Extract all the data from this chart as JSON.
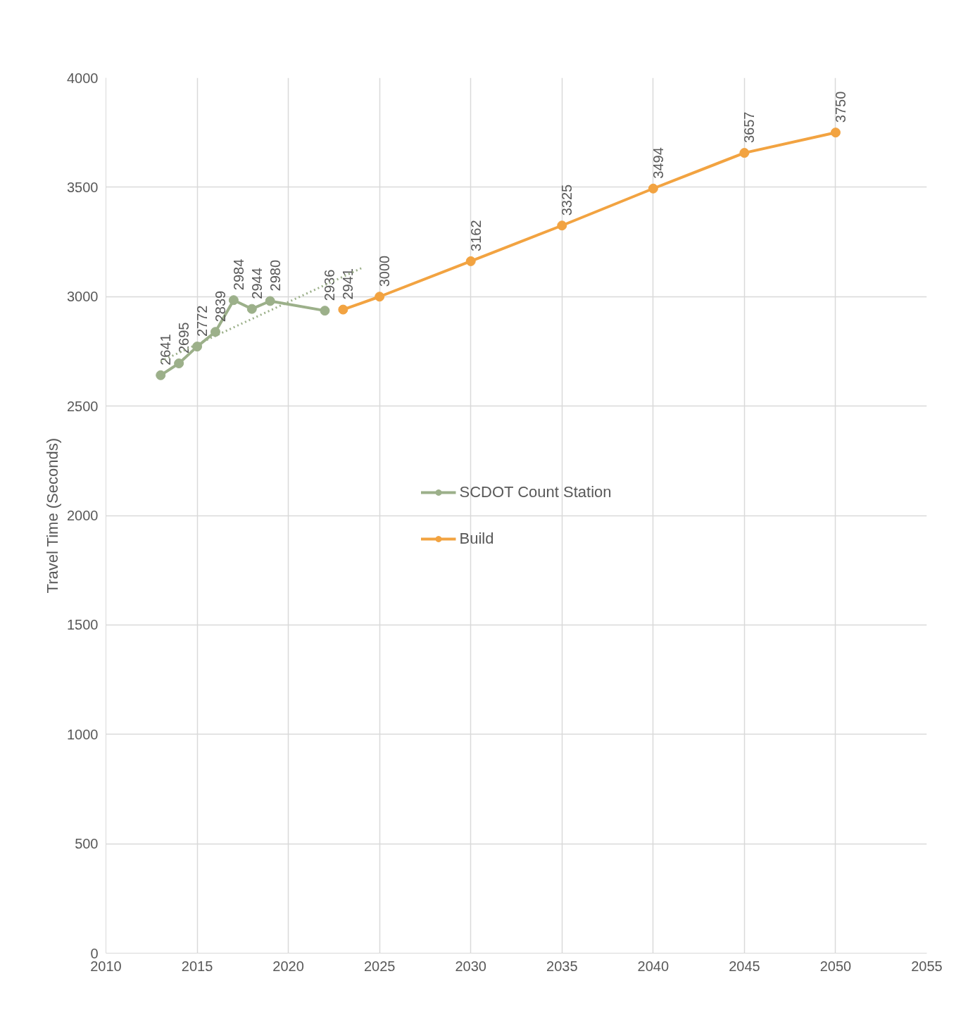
{
  "chart_data": {
    "type": "line",
    "ylabel": "Travel Time (Seconds)",
    "xlim": [
      2010,
      2055
    ],
    "xticks": [
      2010,
      2015,
      2020,
      2025,
      2030,
      2035,
      2040,
      2045,
      2050,
      2055
    ],
    "ylim": [
      0,
      4000
    ],
    "yticks": [
      0,
      500,
      1000,
      1500,
      2000,
      2500,
      3000,
      3500,
      4000
    ],
    "grid": true,
    "legend": "center",
    "marker": "circle",
    "line_style": "solid",
    "series": [
      {
        "name": "SCDOT Count Station",
        "color": "#9cb08a",
        "x": [
          2013,
          2014,
          2015,
          2016,
          2017,
          2018,
          2019,
          2022
        ],
        "values": [
          2641,
          2695,
          2772,
          2839,
          2984,
          2944,
          2980,
          2936
        ],
        "data_labels": true
      },
      {
        "name": "Build",
        "color": "#f2a341",
        "x": [
          2023,
          2025,
          2030,
          2035,
          2040,
          2045,
          2050
        ],
        "values": [
          2941,
          3000,
          3162,
          3325,
          3494,
          3657,
          3750
        ],
        "data_labels": true
      },
      {
        "type": "line",
        "color": "#9cb08a",
        "x": [
          2013,
          2024
        ],
        "values": [
          2705,
          3130
        ],
        "marker": "none",
        "line_style": "dotted"
      }
    ]
  }
}
